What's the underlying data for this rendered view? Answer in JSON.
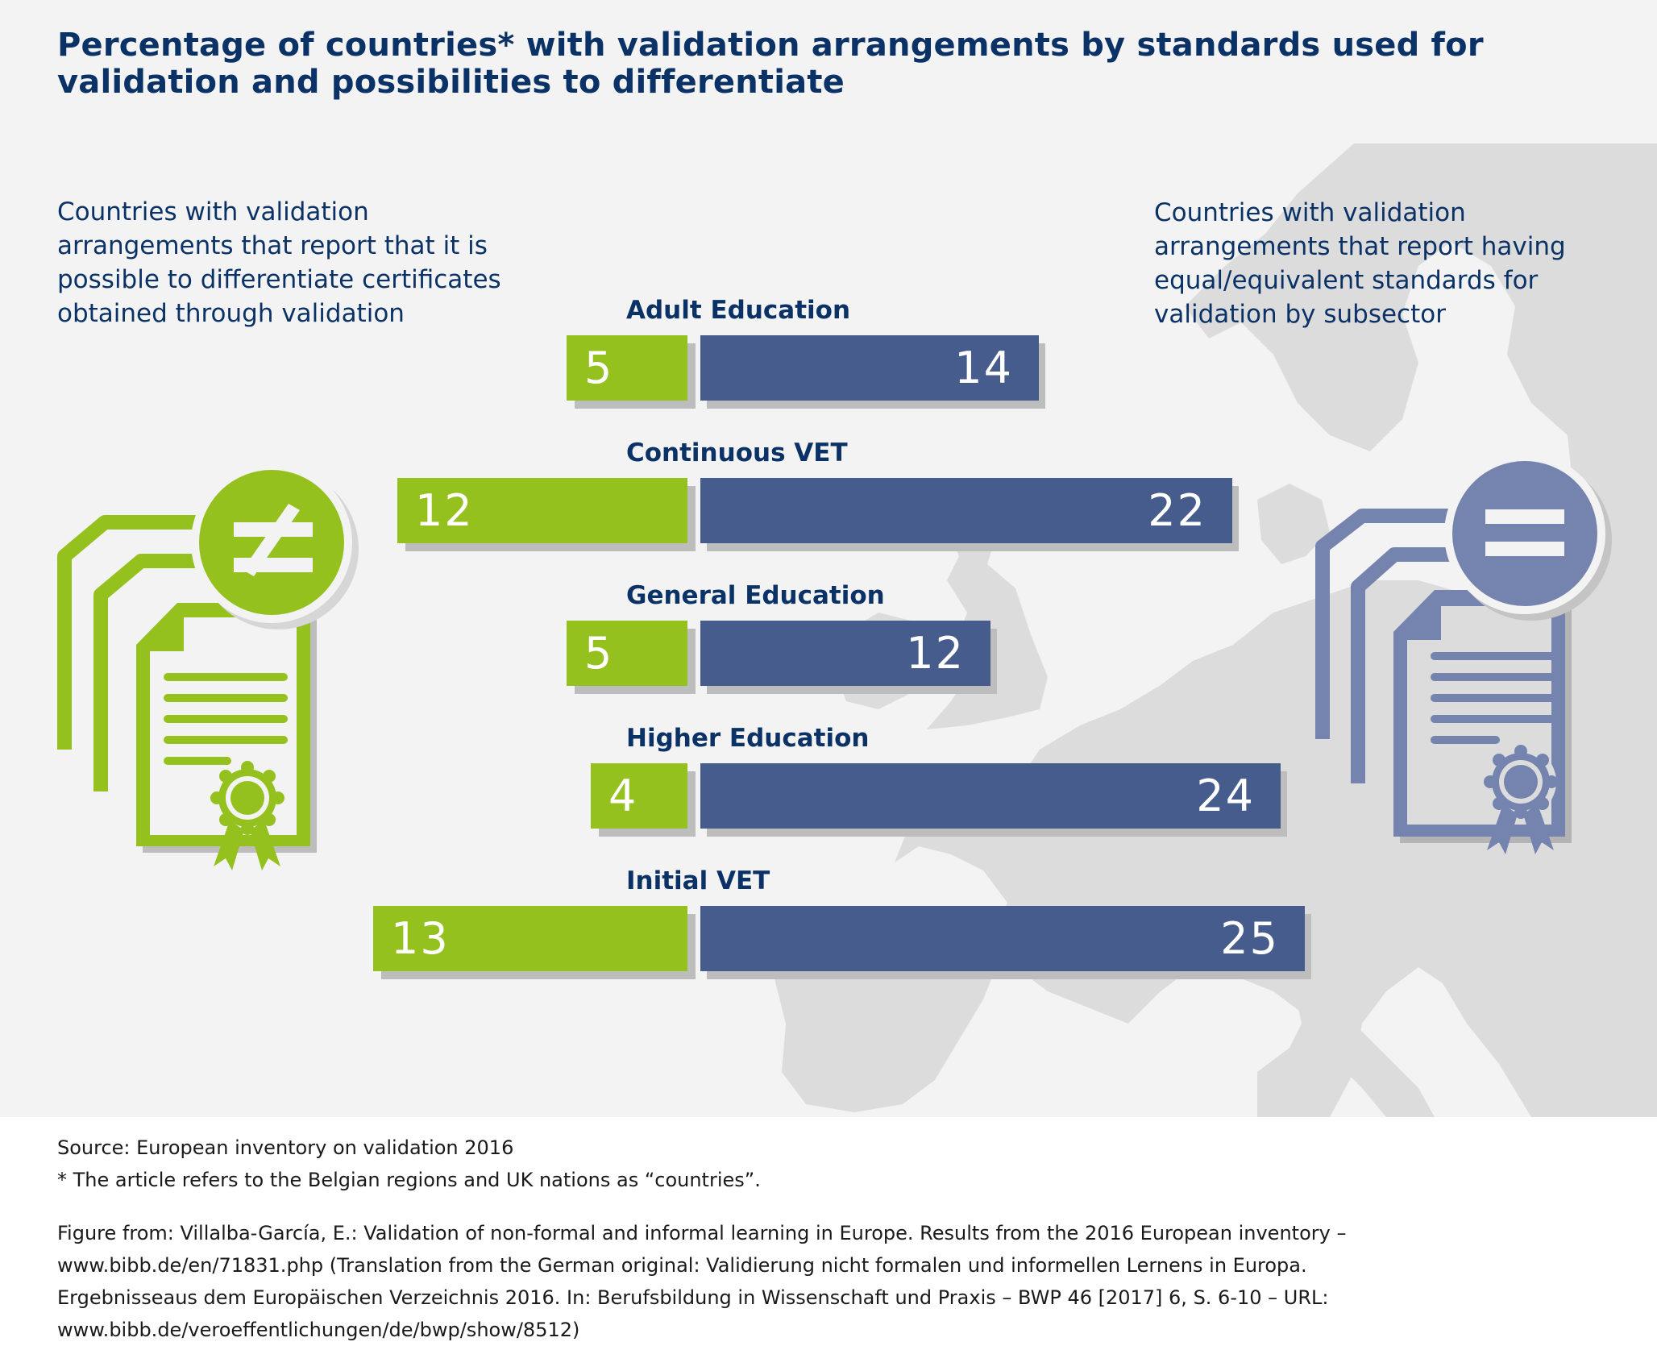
{
  "header": {
    "title_lines": [
      "Percentage of countries* with validation arrangements by standards used for",
      "validation and possibilities to differentiate"
    ]
  },
  "left_panel": {
    "text_lines": [
      "Countries with validation",
      "arrangements that report that it is",
      "possible to differentiate certificates",
      "obtained through validation"
    ],
    "icon": "certificates-not-equal-icon"
  },
  "right_panel": {
    "text_lines": [
      "Countries with validation",
      "arrangements that report having",
      "equal/equivalent standards for",
      "validation by subsector"
    ],
    "icon": "certificates-equal-icon"
  },
  "colors": {
    "title": "#0b3266",
    "green": "#95c11f",
    "blue": "#465c8c",
    "icon_blue": "#7584ae",
    "map": "#dcdcdc",
    "background": "#f3f3f3"
  },
  "chart_data": {
    "type": "bar",
    "orientation": "horizontal-diverging",
    "title": "Percentage of countries* with validation arrangements by standards used for validation and possibilities to differentiate",
    "categories": [
      "Adult Education",
      "Continuous VET",
      "General Education",
      "Higher Education",
      "Initial VET"
    ],
    "series": [
      {
        "name": "Countries with validation arrangements that report that it is possible to differentiate certificates obtained through validation",
        "direction": "left",
        "color": "#95c11f",
        "values": [
          5,
          12,
          5,
          4,
          13
        ]
      },
      {
        "name": "Countries with validation arrangements that report having equal/equivalent standards for validation by subsector",
        "direction": "right",
        "color": "#465c8c",
        "values": [
          14,
          22,
          12,
          24,
          25
        ]
      }
    ],
    "xlabel": "",
    "ylabel": "",
    "grid": false
  },
  "footer": {
    "source_lines": [
      "Source: European inventory on validation 2016",
      "* The article refers to the Belgian regions and UK nations as “countries”."
    ],
    "citation_lines": [
      "Figure from: Villalba-García, E.: Validation of non-formal and informal learning in Europe. Results from the 2016 European inventory –",
      "www.bibb.de/en/71831.php (Translation from the German original: Validierung nicht formalen und informellen Lernens in Europa.",
      "Ergebnisseaus dem Europäischen Verzeichnis 2016. In: Berufsbildung in Wissenschaft und Praxis – BWP 46 [2017] 6, S. 6-10 – URL:",
      "www.bibb.de/veroeffentlichungen/de/bwp/show/8512)"
    ]
  }
}
